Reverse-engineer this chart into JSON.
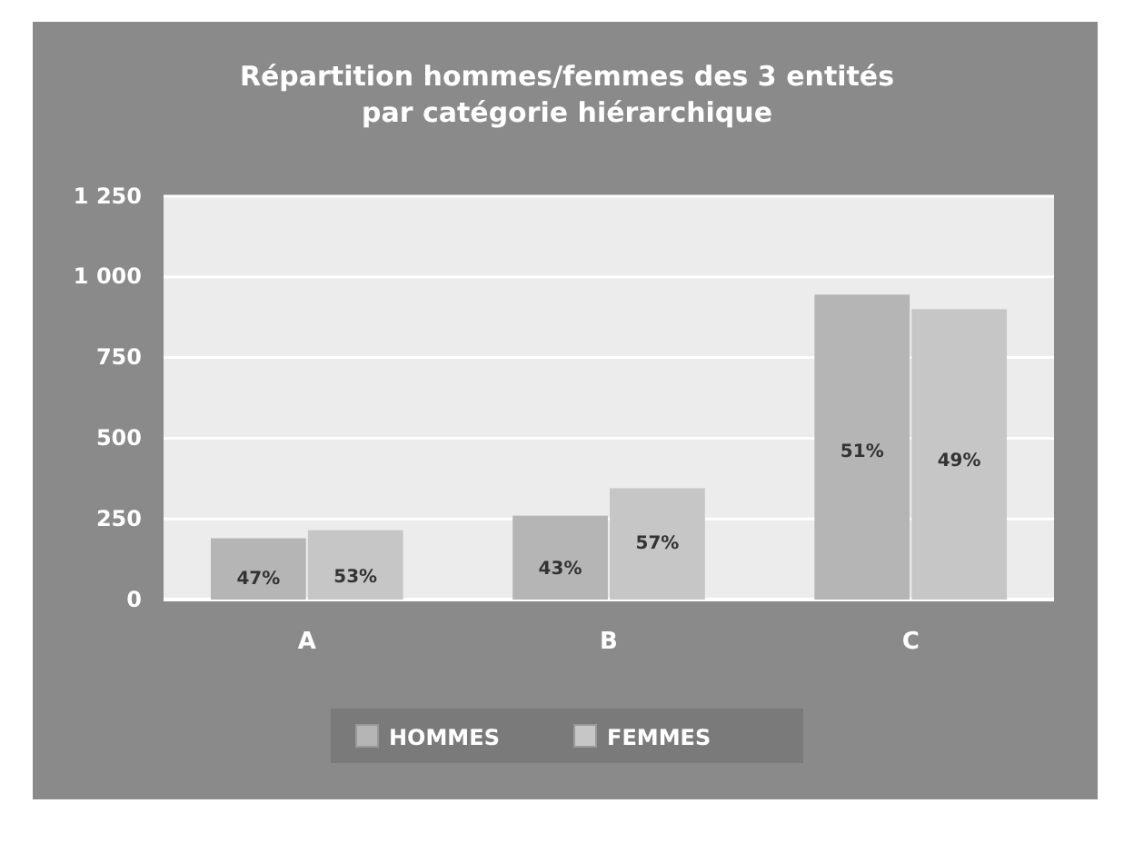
{
  "chart_data": {
    "type": "bar",
    "title": "Répartition hommes/femmes des 3 entités par catégorie hiérarchique",
    "categories": [
      "A",
      "B",
      "C"
    ],
    "series": [
      {
        "name": "HOMMES",
        "color": "#b5b5b5",
        "values": [
          190,
          260,
          945
        ]
      },
      {
        "name": "FEMMES",
        "color": "#c6c6c6",
        "values": [
          215,
          345,
          900
        ]
      }
    ],
    "annotations": [
      {
        "text": "47%",
        "x": "A",
        "y": 70
      },
      {
        "text": "53%",
        "x": "A",
        "y": 75
      },
      {
        "text": "43%",
        "x": "B",
        "y": 100
      },
      {
        "text": "57%",
        "x": "B",
        "y": 180
      },
      {
        "text": "51%",
        "x": "C",
        "y": 465
      },
      {
        "text": "49%",
        "x": "C",
        "y": 435
      }
    ],
    "ylim": [
      0,
      1250
    ],
    "yticks": [
      0,
      {
        "value": 250,
        "label": "250"
      },
      {
        "value": 500,
        "label": "500"
      },
      {
        "value": 750,
        "label": "750"
      },
      {
        "value": 1000,
        "label": "1 000"
      },
      {
        "value": 1250,
        "label": "1 250"
      }
    ],
    "grid": "y",
    "legend": "bottom"
  }
}
